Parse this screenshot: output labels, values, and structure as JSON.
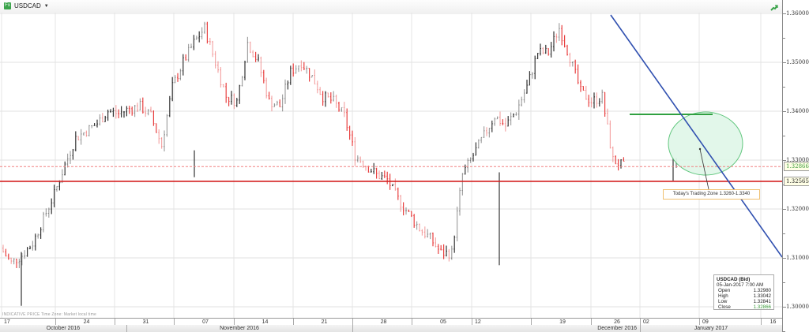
{
  "header": {
    "symbol": "USDCAD",
    "symbol_icon": "fx-icon",
    "dropdown_icon": "caret-down-icon",
    "trend_icon": "trend-icon"
  },
  "footnote": "INDICATIVE PRICE   Time Zone: Market local time",
  "annotation": "Today's Trading Zone 1.3260-1.3340",
  "infobox": {
    "title": "USDCAD (Bid)",
    "datetime": "05-Jan-2017 7:00 AM",
    "rows": [
      {
        "label": "Open",
        "value": "1.32980"
      },
      {
        "label": "High",
        "value": "1.33042"
      },
      {
        "label": "Low",
        "value": "1.32841"
      },
      {
        "label": "Close",
        "value": "1.32866"
      }
    ]
  },
  "price_badges": {
    "last": "1.32866",
    "support": "1.32565"
  },
  "colors": {
    "up_bar": "#333333",
    "down_bar": "#e84040",
    "support_line": "#d42020",
    "last_price_line": "#f08080",
    "trendline": "#3050b0",
    "resistance_line": "#30a040",
    "ellipse_fill": "#dff7e8",
    "ellipse_stroke": "#50c070"
  },
  "chart_data": {
    "type": "ohlc",
    "title": "USDCAD",
    "xlabel": "",
    "ylabel": "",
    "ylim": [
      1.2985,
      1.3625
    ],
    "y_ticks": [
      "1.36000",
      "1.35000",
      "1.34000",
      "1.33000",
      "1.32000",
      "1.31000",
      "1.30000"
    ],
    "x_ticks": [
      "17",
      "24",
      "31",
      "07",
      "14",
      "21",
      "28",
      "05",
      "12",
      "19",
      "26",
      "02",
      "09",
      "16"
    ],
    "months": [
      "October 2016",
      "November 2016",
      "December 2016",
      "January 2017"
    ],
    "grid": true,
    "series_path": [
      {
        "date": "2016-10-17",
        "close": 1.312
      },
      {
        "date": "2016-10-18",
        "close": 1.309
      },
      {
        "date": "2016-10-19",
        "close": 1.3105
      },
      {
        "date": "2016-10-20",
        "close": 1.313
      },
      {
        "date": "2016-10-21",
        "close": 1.318
      },
      {
        "date": "2016-10-24",
        "close": 1.323
      },
      {
        "date": "2016-10-25",
        "close": 1.329
      },
      {
        "date": "2016-10-26",
        "close": 1.3345
      },
      {
        "date": "2016-10-27",
        "close": 1.336
      },
      {
        "date": "2016-10-28",
        "close": 1.3375
      },
      {
        "date": "2016-10-31",
        "close": 1.34
      },
      {
        "date": "2016-11-01",
        "close": 1.3395
      },
      {
        "date": "2016-11-02",
        "close": 1.3405
      },
      {
        "date": "2016-11-03",
        "close": 1.341
      },
      {
        "date": "2016-11-04",
        "close": 1.339
      },
      {
        "date": "2016-11-07",
        "close": 1.333
      },
      {
        "date": "2016-11-08",
        "close": 1.345
      },
      {
        "date": "2016-11-09",
        "close": 1.35
      },
      {
        "date": "2016-11-10",
        "close": 1.354
      },
      {
        "date": "2016-11-11",
        "close": 1.357
      },
      {
        "date": "2016-11-14",
        "close": 1.35
      },
      {
        "date": "2016-11-15",
        "close": 1.343
      },
      {
        "date": "2016-11-16",
        "close": 1.342
      },
      {
        "date": "2016-11-17",
        "close": 1.354
      },
      {
        "date": "2016-11-18",
        "close": 1.35
      },
      {
        "date": "2016-11-21",
        "close": 1.342
      },
      {
        "date": "2016-11-22",
        "close": 1.341
      },
      {
        "date": "2016-11-23",
        "close": 1.348
      },
      {
        "date": "2016-11-24",
        "close": 1.35
      },
      {
        "date": "2016-11-25",
        "close": 1.347
      },
      {
        "date": "2016-11-28",
        "close": 1.343
      },
      {
        "date": "2016-11-29",
        "close": 1.342
      },
      {
        "date": "2016-11-30",
        "close": 1.339
      },
      {
        "date": "2016-12-01",
        "close": 1.331
      },
      {
        "date": "2016-12-02",
        "close": 1.329
      },
      {
        "date": "2016-12-05",
        "close": 1.327
      },
      {
        "date": "2016-12-06",
        "close": 1.326
      },
      {
        "date": "2016-12-07",
        "close": 1.322
      },
      {
        "date": "2016-12-08",
        "close": 1.319
      },
      {
        "date": "2016-12-09",
        "close": 1.316
      },
      {
        "date": "2016-12-12",
        "close": 1.314
      },
      {
        "date": "2016-12-13",
        "close": 1.311
      },
      {
        "date": "2016-12-14",
        "close": 1.311
      },
      {
        "date": "2016-12-15",
        "close": 1.327
      },
      {
        "date": "2016-12-16",
        "close": 1.331
      },
      {
        "date": "2016-12-19",
        "close": 1.335
      },
      {
        "date": "2016-12-20",
        "close": 1.339
      },
      {
        "date": "2016-12-21",
        "close": 1.337
      },
      {
        "date": "2016-12-22",
        "close": 1.34
      },
      {
        "date": "2016-12-23",
        "close": 1.345
      },
      {
        "date": "2016-12-26",
        "close": 1.352
      },
      {
        "date": "2016-12-27",
        "close": 1.352
      },
      {
        "date": "2016-12-28",
        "close": 1.357
      },
      {
        "date": "2016-12-29",
        "close": 1.351
      },
      {
        "date": "2016-12-30",
        "close": 1.344
      },
      {
        "date": "2017-01-02",
        "close": 1.342
      },
      {
        "date": "2017-01-03",
        "close": 1.343
      },
      {
        "date": "2017-01-04",
        "close": 1.33
      },
      {
        "date": "2017-01-05",
        "close": 1.3287
      }
    ],
    "last_bar": {
      "date": "05-Jan-2017 7:00 AM",
      "open": 1.3298,
      "high": 1.33042,
      "low": 1.32841,
      "close": 1.32866
    },
    "annotations": [
      {
        "type": "hline",
        "y": 1.32565,
        "label": "support"
      },
      {
        "type": "hline",
        "y": 1.32866,
        "label": "last price",
        "style": "dashed"
      },
      {
        "type": "segment",
        "label": "resistance",
        "y": 1.3394
      },
      {
        "type": "trendline",
        "from": [
          1.359
        ],
        "to": [
          1.31
        ]
      },
      {
        "type": "ellipse",
        "label": "Today's Trading Zone 1.3260-1.3340"
      }
    ]
  }
}
